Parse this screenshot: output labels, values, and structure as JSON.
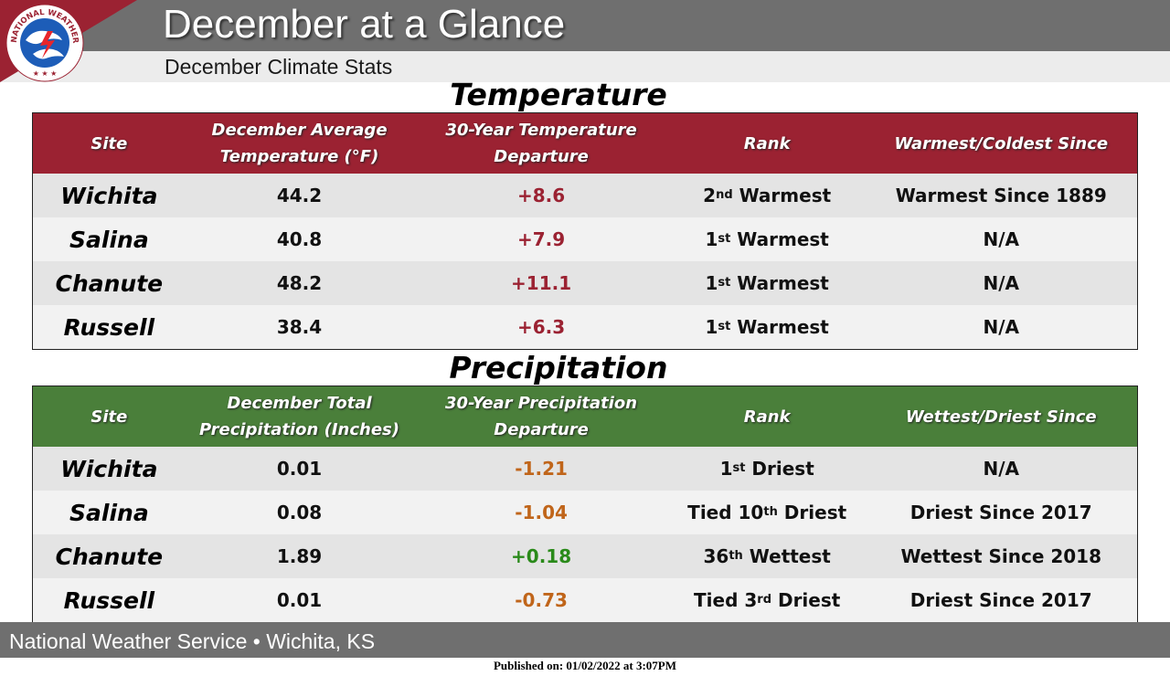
{
  "header": {
    "title": "December at a Glance",
    "subtitle": "December Climate Stats",
    "logo_text": "NATIONAL WEATHER SERVICE"
  },
  "temperature": {
    "heading": "Temperature",
    "columns": [
      "Site",
      "December Average Temperature (°F)",
      "30-Year Temperature Departure",
      "Rank",
      "Warmest/Coldest Since"
    ],
    "rows": [
      {
        "site": "Wichita",
        "value": "44.2",
        "departure": "+8.6",
        "rank_pre": "2",
        "rank_sup": "nd",
        "rank_post": " Warmest",
        "since": "Warmest Since 1889"
      },
      {
        "site": "Salina",
        "value": "40.8",
        "departure": "+7.9",
        "rank_pre": "1",
        "rank_sup": "st",
        "rank_post": " Warmest",
        "since": "N/A"
      },
      {
        "site": "Chanute",
        "value": "48.2",
        "departure": "+11.1",
        "rank_pre": "1",
        "rank_sup": "st",
        "rank_post": " Warmest",
        "since": "N/A"
      },
      {
        "site": "Russell",
        "value": "38.4",
        "departure": "+6.3",
        "rank_pre": "1",
        "rank_sup": "st",
        "rank_post": " Warmest",
        "since": "N/A"
      }
    ]
  },
  "precipitation": {
    "heading": "Precipitation",
    "columns": [
      "Site",
      "December Total Precipitation (Inches)",
      "30-Year Precipitation Departure",
      "Rank",
      "Wettest/Driest Since"
    ],
    "rows": [
      {
        "site": "Wichita",
        "value": "0.01",
        "departure": "-1.21",
        "rank_pre": "1",
        "rank_sup": "st",
        "rank_post": " Driest",
        "since": "N/A"
      },
      {
        "site": "Salina",
        "value": "0.08",
        "departure": "-1.04",
        "rank_pre": "Tied 10",
        "rank_sup": "th",
        "rank_post": " Driest",
        "since": "Driest Since 2017"
      },
      {
        "site": "Chanute",
        "value": "1.89",
        "departure": "+0.18",
        "rank_pre": "36",
        "rank_sup": "th",
        "rank_post": " Wettest",
        "since": "Wettest Since 2018"
      },
      {
        "site": "Russell",
        "value": "0.01",
        "departure": "-0.73",
        "rank_pre": "Tied 3",
        "rank_sup": "rd",
        "rank_post": " Driest",
        "since": "Driest Since 2017"
      }
    ]
  },
  "footer": {
    "office": "National Weather Service • Wichita, KS",
    "published": "Published on: 01/02/2022 at 3:07PM"
  },
  "colors": {
    "temp_header": "#9b2232",
    "precip_header": "#4a7f3a",
    "positive_temp": "#9b2232",
    "negative_precip": "#c0651a",
    "positive_precip": "#2a8a1a"
  }
}
